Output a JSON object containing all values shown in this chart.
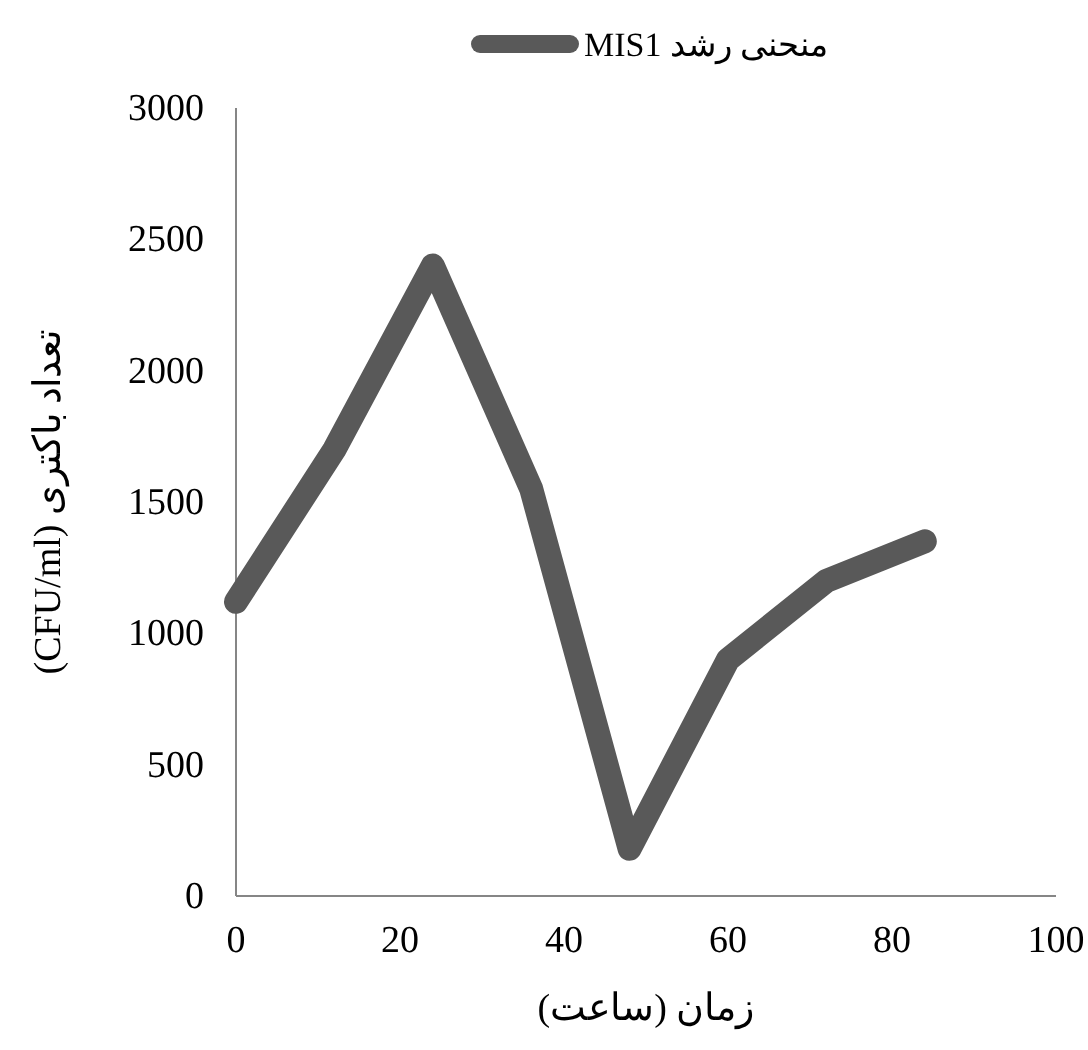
{
  "chart_data": {
    "type": "line",
    "xlabel": "زمان (ساعت)",
    "ylabel": "تعداد باکتری (CFU/ml)",
    "x": [
      0,
      12,
      24,
      36,
      48,
      60,
      72,
      84
    ],
    "series": [
      {
        "name": "منحنی رشد MIS1",
        "color": "#595959",
        "values": [
          1120,
          1700,
          2400,
          1550,
          180,
          900,
          1200,
          1350
        ]
      }
    ],
    "xlim": [
      0,
      100
    ],
    "xticks": [
      0,
      20,
      40,
      60,
      80,
      100
    ],
    "ylim": [
      0,
      3000
    ],
    "yticks": [
      0,
      500,
      1000,
      1500,
      2000,
      2500,
      3000
    ],
    "grid": false,
    "legend": "top",
    "line_style": "solid"
  }
}
